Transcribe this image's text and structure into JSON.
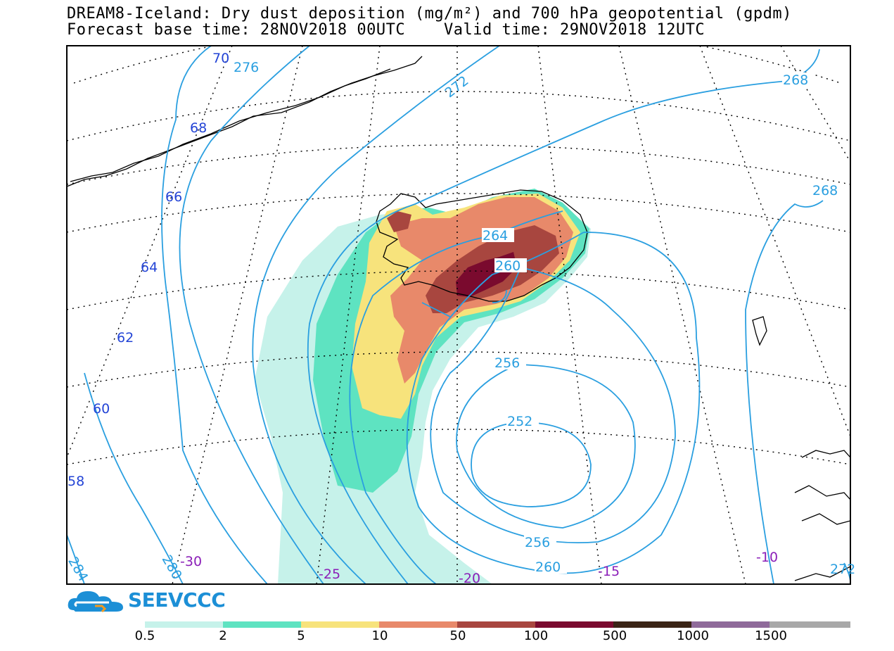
{
  "header": {
    "line1": "DREAM8-Iceland: Dry dust deposition (mg/m²) and 700 hPa geopotential (gpdm)",
    "line2": "Forecast base time: 28NOV2018 00UTC    Valid time: 29NOV2018 12UTC"
  },
  "contours": [
    "276",
    "272",
    "268",
    "268",
    "264",
    "260",
    "256",
    "252",
    "256",
    "260",
    "280",
    "284",
    "272"
  ],
  "lat_labels": [
    "70",
    "68",
    "66",
    "64",
    "62",
    "60",
    "58"
  ],
  "lon_labels": [
    "-30",
    "-25",
    "-20",
    "-15",
    "-10"
  ],
  "logo": {
    "text": "SEEVCCC",
    "icon": "cloud-logo-icon"
  },
  "colorbar": {
    "labels": [
      "0.5",
      "2",
      "5",
      "10",
      "50",
      "100",
      "500",
      "1000",
      "1500"
    ],
    "colors": [
      "#c6f2ea",
      "#5ee3c1",
      "#f7e37c",
      "#e8896a",
      "#a8463f",
      "#7a0a2e",
      "#3b2416",
      "#8f6a9a",
      "#a8a8a8"
    ]
  },
  "colors": {
    "contour": "#2a9fe0",
    "lat_label": "#2344d6",
    "lon_label": "#8b1fb8"
  }
}
